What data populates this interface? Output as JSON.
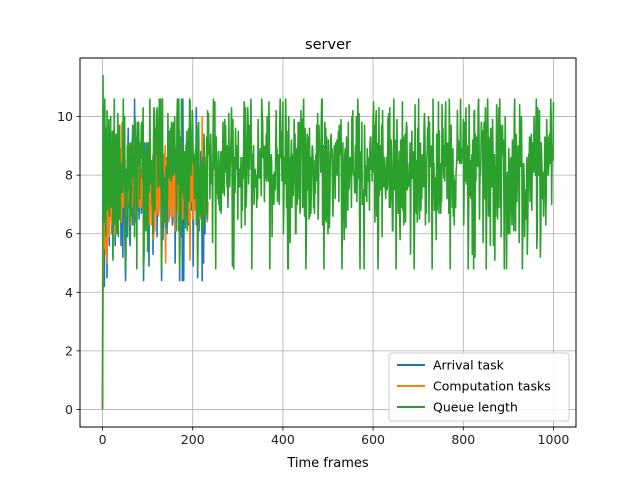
{
  "chart_data": {
    "type": "line",
    "title": "server",
    "xlabel": "Time frames",
    "ylabel": "",
    "xlim": [
      -50,
      1050
    ],
    "ylim": [
      -0.6,
      12
    ],
    "xticks": [
      0,
      200,
      400,
      600,
      800,
      1000
    ],
    "yticks": [
      0,
      2,
      4,
      6,
      8,
      10
    ],
    "grid": true,
    "legend_position": "lower-right",
    "n_points": 1001,
    "series": [
      {
        "name": "Arrival task",
        "color": "#1f77b4",
        "values": [
          0,
          5.2,
          6.0,
          7.6,
          4.2,
          6.8,
          7.4,
          5.4,
          6.9,
          7.6,
          4.5,
          7.2,
          7.0,
          6.2,
          7.8,
          5.6,
          7.4,
          6.8,
          7.9,
          6.6,
          7.0,
          6.0,
          7.7,
          5.2,
          7.0,
          7.6,
          6.6,
          7.3,
          5.6,
          7.8,
          6.9,
          7.0,
          6.3,
          7.5,
          6.0,
          7.1,
          7.7,
          6.5,
          7.2,
          6.8
        ]
      },
      {
        "name": "Computation tasks",
        "color": "#ff7f0e",
        "values": [
          0,
          4.6,
          6.2,
          7.4,
          5.5,
          6.6,
          7.5,
          5.3,
          7.1,
          7.3,
          5.0,
          7.0,
          7.2,
          6.0,
          7.6,
          5.9,
          7.2,
          6.6,
          7.7,
          6.5,
          7.1,
          6.3,
          7.5,
          5.6,
          7.2,
          7.4,
          6.8,
          7.1,
          6.0,
          7.6,
          6.7,
          7.2,
          6.5,
          7.3,
          6.2,
          7.0,
          7.5,
          6.6,
          7.1,
          6.9
        ]
      },
      {
        "name": "Queue length",
        "color": "#2ca02c",
        "values": [
          0,
          11.4,
          7.9,
          9.8,
          6.4,
          10.6,
          8.2,
          5.9,
          9.6,
          7.2,
          10.2,
          6.8,
          8.9,
          7.4,
          9.9,
          6.6,
          8.5,
          7.8,
          10.0,
          6.9,
          8.8,
          7.1,
          9.5,
          5.1,
          9.0,
          7.6,
          10.6,
          6.3,
          8.6,
          7.3,
          9.4,
          6.0,
          9.1,
          7.7,
          10.1,
          5.9,
          8.3,
          7.5,
          9.7,
          6.5
        ]
      }
    ]
  }
}
